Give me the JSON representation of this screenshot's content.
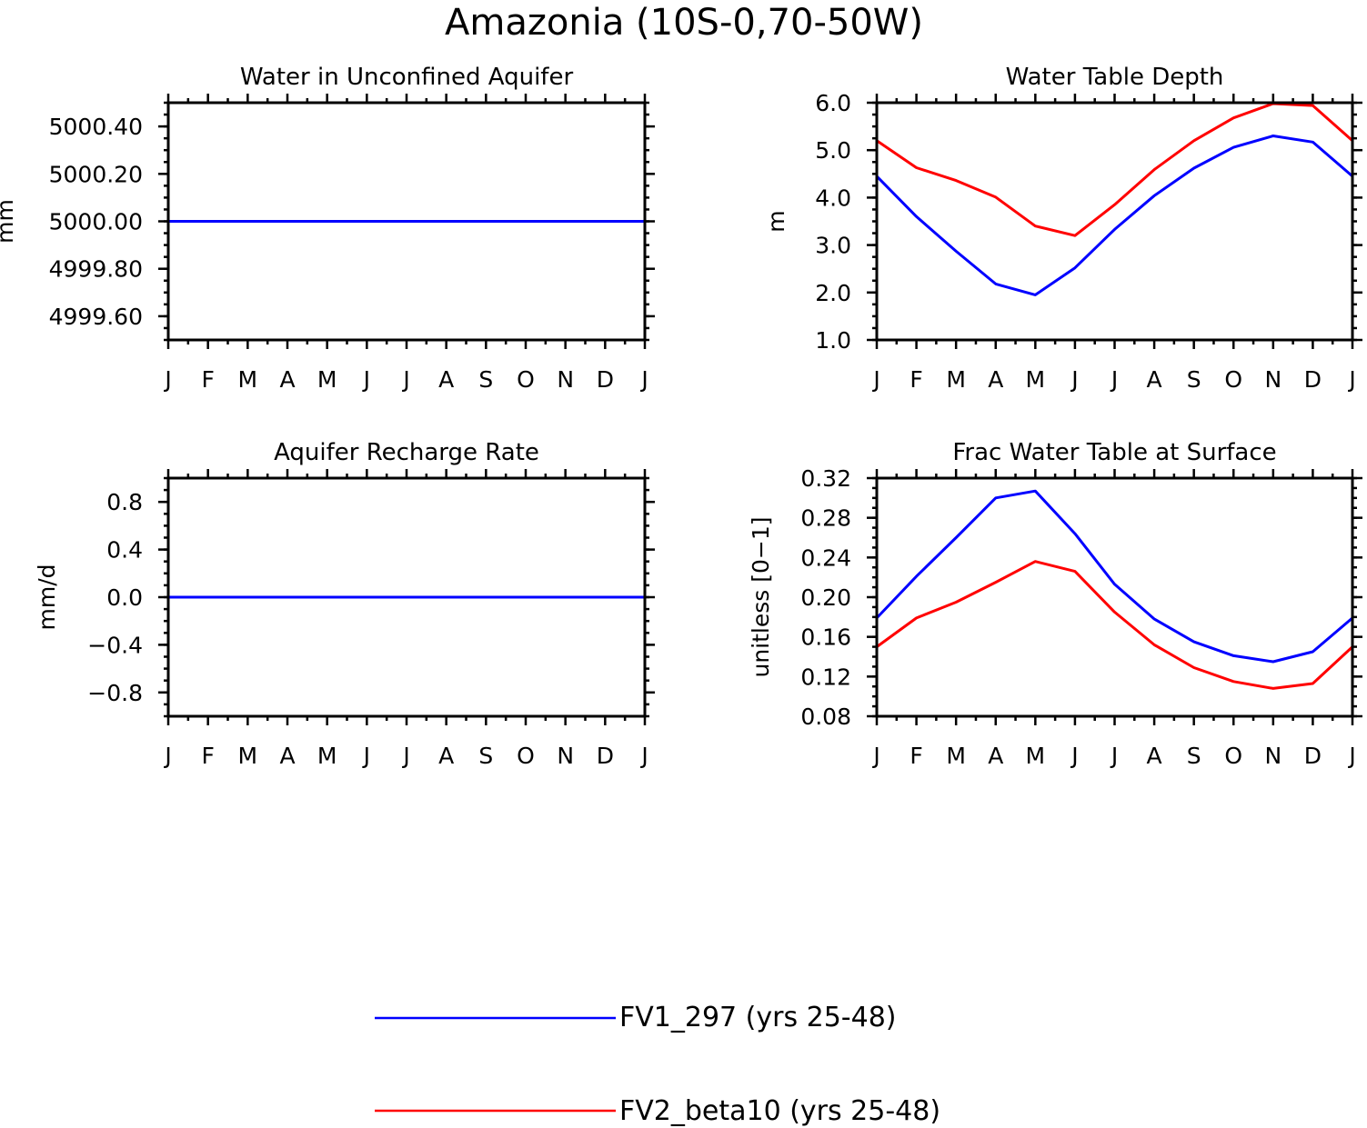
{
  "chart_data": {
    "title": "Amazonia (10S-0,70-50W)",
    "legend": {
      "placement": "bottom-center",
      "entries": [
        {
          "name": "FV1_297 (yrs 25-48)",
          "color": "#0000ff"
        },
        {
          "name": "FV2_beta10 (yrs 25-48)",
          "color": "#ff0000"
        }
      ]
    },
    "panels": [
      {
        "type": "line",
        "title": "Water in Unconfined Aquifer",
        "ylabel": "mm",
        "ylim": [
          4999.5,
          5000.5
        ],
        "yticks": [
          4999.6,
          4999.8,
          5000.0,
          5000.2,
          5000.4
        ],
        "ytick_labels": [
          "4999.60",
          "4999.80",
          "5000.00",
          "5000.20",
          "5000.40"
        ],
        "x": [
          "J",
          "F",
          "M",
          "A",
          "M",
          "J",
          "J",
          "A",
          "S",
          "O",
          "N",
          "D",
          "J"
        ],
        "series": [
          {
            "color": "#0000ff",
            "values": [
              5000,
              5000,
              5000,
              5000,
              5000,
              5000,
              5000,
              5000,
              5000,
              5000,
              5000,
              5000,
              5000
            ]
          }
        ]
      },
      {
        "type": "line",
        "title": "Water Table Depth",
        "ylabel": "m",
        "ylim": [
          1.0,
          6.0
        ],
        "yticks": [
          1.0,
          2.0,
          3.0,
          4.0,
          5.0,
          6.0
        ],
        "ytick_labels": [
          "1.0",
          "2.0",
          "3.0",
          "4.0",
          "5.0",
          "6.0"
        ],
        "x": [
          "J",
          "F",
          "M",
          "A",
          "M",
          "J",
          "J",
          "A",
          "S",
          "O",
          "N",
          "D",
          "J"
        ],
        "series": [
          {
            "color": "#0000ff",
            "values": [
              4.45,
              3.6,
              2.87,
              2.18,
              1.95,
              2.52,
              3.33,
              4.04,
              4.62,
              5.06,
              5.3,
              5.17,
              4.45
            ]
          },
          {
            "color": "#ff0000",
            "values": [
              5.2,
              4.63,
              4.36,
              4.01,
              3.4,
              3.2,
              3.85,
              4.59,
              5.2,
              5.68,
              5.98,
              5.94,
              5.2
            ]
          }
        ]
      },
      {
        "type": "line",
        "title": "Aquifer Recharge Rate",
        "ylabel": "mm/d",
        "ylim": [
          -1.0,
          1.0
        ],
        "yticks": [
          -0.8,
          -0.4,
          0.0,
          0.4,
          0.8
        ],
        "ytick_labels": [
          "−0.8",
          "−0.4",
          "0.0",
          "0.4",
          "0.8"
        ],
        "x": [
          "J",
          "F",
          "M",
          "A",
          "M",
          "J",
          "J",
          "A",
          "S",
          "O",
          "N",
          "D",
          "J"
        ],
        "series": [
          {
            "color": "#0000ff",
            "values": [
              0,
              0,
              0,
              0,
              0,
              0,
              0,
              0,
              0,
              0,
              0,
              0,
              0
            ]
          }
        ]
      },
      {
        "type": "line",
        "title": "Frac Water Table at Surface",
        "ylabel": "unitless [0−1]",
        "ylim": [
          0.08,
          0.32
        ],
        "yticks": [
          0.08,
          0.12,
          0.16,
          0.2,
          0.24,
          0.28,
          0.32
        ],
        "ytick_labels": [
          "0.08",
          "0.12",
          "0.16",
          "0.20",
          "0.24",
          "0.28",
          "0.32"
        ],
        "x": [
          "J",
          "F",
          "M",
          "A",
          "M",
          "J",
          "J",
          "A",
          "S",
          "O",
          "N",
          "D",
          "J"
        ],
        "series": [
          {
            "color": "#0000ff",
            "values": [
              0.179,
              0.221,
              0.26,
              0.3,
              0.307,
              0.264,
              0.213,
              0.178,
              0.155,
              0.141,
              0.135,
              0.145,
              0.179
            ]
          },
          {
            "color": "#ff0000",
            "values": [
              0.15,
              0.179,
              0.195,
              0.215,
              0.236,
              0.226,
              0.185,
              0.152,
              0.129,
              0.115,
              0.108,
              0.113,
              0.15
            ]
          }
        ]
      }
    ]
  }
}
